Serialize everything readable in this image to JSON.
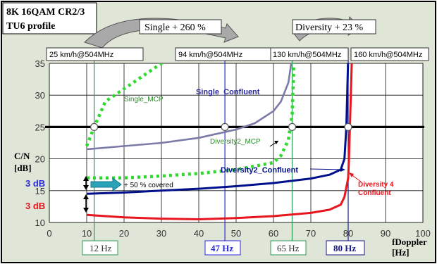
{
  "header": {
    "title_line1": "8K 16QAM CR2/3",
    "title_line2": "TU6 profile",
    "single_gain": "Single + 260 %",
    "diversity_gain": "Diversity + 23 %"
  },
  "speed_labels": [
    "25 km/h@504MHz",
    "94 km/h@504MHz",
    "130 km/h@504MHz",
    "160 km/h@504MHz"
  ],
  "freq_labels": [
    "12 Hz",
    "47 Hz",
    "65 Hz",
    "80 Hz"
  ],
  "ylabel": [
    "C/N",
    "[dB]"
  ],
  "xlabel": [
    "fDoppler",
    "[Hz]"
  ],
  "annotations": {
    "three_db_blue": "3 dB",
    "three_db_red": "3 dB",
    "covered": "+ 50 % covered"
  },
  "colors": {
    "background": "#dfe6d8",
    "single_mcp": "#2fd92f",
    "single_confluent": "#7c7aa8",
    "diversity2_mcp": "#2fd92f",
    "diversity2_confluent": "#00108c",
    "diversity4_confluent": "#e8141e",
    "reference": "#000000",
    "marker_12": "#2b9a5a",
    "marker_47": "#2b2bd8",
    "marker_65": "#2b9a5a",
    "marker_80": "#1a1a8a",
    "arrow_cover": "#2aa2b8"
  },
  "chart_data": {
    "type": "line",
    "xlabel": "fDoppler [Hz]",
    "ylabel": "C/N [dB]",
    "xlim": [
      0,
      100
    ],
    "ylim": [
      10,
      35
    ],
    "x_ticks": [
      0,
      10,
      20,
      30,
      40,
      50,
      60,
      70,
      80,
      90,
      100
    ],
    "y_ticks": [
      10,
      15,
      20,
      25,
      30,
      35
    ],
    "grid": true,
    "reference_line": {
      "y": 25
    },
    "markers_x": [
      12,
      47,
      65,
      80
    ],
    "crossings": [
      {
        "x": 12,
        "y": 25
      },
      {
        "x": 47,
        "y": 25
      },
      {
        "x": 65,
        "y": 25
      },
      {
        "x": 80,
        "y": 25
      }
    ],
    "series": [
      {
        "name": "Single_MCP",
        "style": "dotted",
        "x": [
          10,
          12,
          15,
          20,
          25,
          30,
          35
        ],
        "y": [
          22,
          25,
          29,
          31,
          33,
          35,
          36
        ]
      },
      {
        "name": "Single_Confluent",
        "style": "solid",
        "x": [
          10,
          20,
          30,
          40,
          50,
          55,
          60,
          62,
          64,
          65
        ],
        "y": [
          21.5,
          22,
          22.5,
          23.3,
          24.6,
          25.6,
          27.5,
          29,
          32,
          36
        ]
      },
      {
        "name": "Diversity2_MCP",
        "style": "dotted",
        "x": [
          10,
          20,
          30,
          40,
          50,
          60,
          62,
          64,
          65,
          65.5
        ],
        "y": [
          17,
          17,
          17.3,
          17.7,
          18.3,
          19.4,
          20.5,
          23,
          27,
          36
        ]
      },
      {
        "name": "Diversity2_Confluent",
        "style": "solid",
        "x": [
          10,
          20,
          30,
          40,
          50,
          60,
          70,
          75,
          78,
          79,
          79.5,
          80
        ],
        "y": [
          14.5,
          14.7,
          15,
          15.3,
          15.7,
          16.2,
          16.9,
          17.5,
          18.3,
          20,
          25,
          36
        ]
      },
      {
        "name": "Diversity 4 Confluent",
        "style": "solid",
        "x": [
          10,
          20,
          30,
          40,
          50,
          60,
          70,
          75,
          78,
          79,
          80,
          80.2,
          80.5,
          81
        ],
        "y": [
          11.2,
          10.8,
          10.6,
          10.5,
          10.7,
          11,
          11.5,
          12,
          12.8,
          14,
          17,
          20,
          26,
          36
        ]
      }
    ],
    "series_labels": [
      "Single_MCP",
      "Single_Confluent",
      "Diversity2_MCP",
      "Diversity2_Confluent",
      "Diversity 4",
      "Confluent"
    ]
  }
}
